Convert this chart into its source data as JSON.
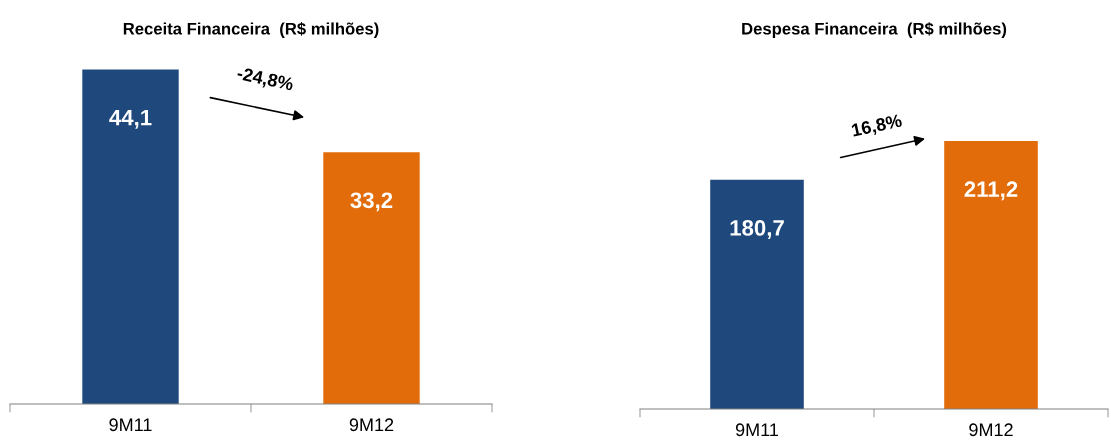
{
  "chart_data": [
    {
      "type": "bar",
      "title": "Receita Financeira  (R$ milhões)",
      "categories": [
        "9M11",
        "9M12"
      ],
      "values": [
        44.1,
        33.2
      ],
      "colors": [
        "#1f497d",
        "#e36c0a"
      ],
      "data_labels": true,
      "value_labels": [
        "44,1",
        "33,2"
      ],
      "annotations": [
        "-24,8%"
      ]
    },
    {
      "type": "bar",
      "title": "Despesa Financeira  (R$ milhões)",
      "categories": [
        "9M11",
        "9M12"
      ],
      "values": [
        180.7,
        211.2
      ],
      "colors": [
        "#1f497d",
        "#e36c0a"
      ],
      "data_labels": true,
      "value_labels": [
        "180,7",
        "211,2"
      ],
      "annotations": [
        "16,8%"
      ]
    }
  ]
}
